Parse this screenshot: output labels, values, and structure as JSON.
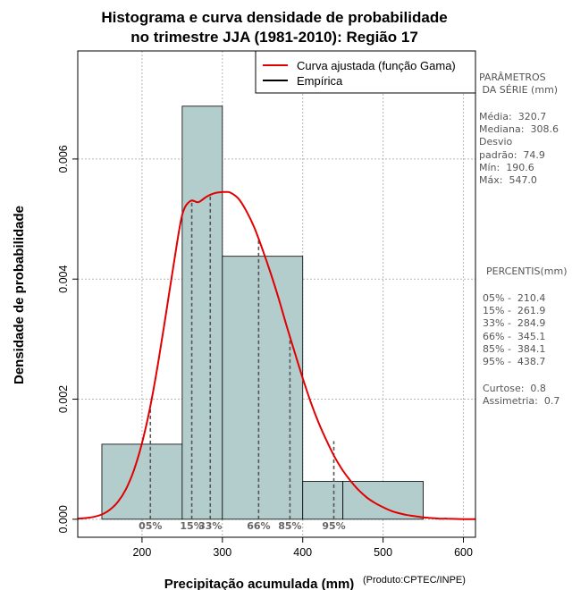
{
  "colors": {
    "bar_fill": "#b3cccc",
    "curve": "#e00000",
    "grid": "#b5b5b5",
    "text_side": "#555555"
  },
  "chart_data": {
    "type": "bar",
    "title_lines": [
      "Histograma e curva densidade de probabilidade",
      "no trimestre JJA (1981-2010): Região 17"
    ],
    "xlabel": "Precipitação acumulada (mm)",
    "ylabel": "Densidade de probabilidade",
    "credit": "(Produto:CPTEC/INPE)",
    "xlim": [
      120,
      615
    ],
    "ylim": [
      -0.0003,
      0.0078
    ],
    "x_ticks": [
      200,
      300,
      400,
      500,
      600
    ],
    "y_ticks": [
      0.0,
      0.002,
      0.004,
      0.006
    ],
    "y_tick_labels": [
      "0.000",
      "0.002",
      "0.004",
      "0.006"
    ],
    "histogram": {
      "bins": [
        {
          "x0": 150,
          "x1": 250,
          "density": 0.00125
        },
        {
          "x0": 250,
          "x1": 300,
          "density": 0.00688
        },
        {
          "x0": 300,
          "x1": 400,
          "density": 0.00438
        },
        {
          "x0": 400,
          "x1": 450,
          "density": 0.00063
        },
        {
          "x0": 450,
          "x1": 550,
          "density": 0.00063
        }
      ]
    },
    "gamma_curve": {
      "name": "Curva ajustada (função Gama)",
      "x": [
        120,
        130,
        140,
        150,
        160,
        170,
        180,
        190,
        200,
        210,
        220,
        230,
        240,
        250,
        260,
        270,
        280,
        290,
        300,
        305,
        310,
        320,
        330,
        340,
        350,
        360,
        370,
        380,
        390,
        400,
        410,
        420,
        430,
        440,
        450,
        460,
        470,
        480,
        490,
        500,
        510,
        520,
        530,
        540,
        550,
        560,
        570,
        580,
        590,
        600,
        615
      ],
      "y": [
        1e-05,
        2e-05,
        4e-05,
        8e-05,
        0.00016,
        0.00029,
        0.0005,
        0.00082,
        0.00127,
        0.00186,
        0.0026,
        0.00344,
        0.0043,
        0.00507,
        0.0053,
        0.00528,
        0.00537,
        0.00543,
        0.00545,
        0.00545,
        0.00544,
        0.00534,
        0.00513,
        0.00485,
        0.00449,
        0.0041,
        0.00368,
        0.00322,
        0.00278,
        0.00235,
        0.00195,
        0.0016,
        0.0013,
        0.00103,
        0.00081,
        0.00063,
        0.00048,
        0.00036,
        0.00027,
        0.0002,
        0.00014,
        0.0001,
        7e-05,
        5e-05,
        3e-05,
        2e-05,
        1e-05,
        1e-05,
        5e-06,
        3e-06,
        1e-06
      ]
    },
    "percentile_lines": [
      {
        "label": "05%",
        "x": 210.4,
        "y": 0.00186
      },
      {
        "label": "15%",
        "x": 261.9,
        "y": 0.00529
      },
      {
        "label": "33%",
        "x": 284.9,
        "y": 0.00538
      },
      {
        "label": "66%",
        "x": 345.1,
        "y": 0.00466
      },
      {
        "label": "85%",
        "x": 384.1,
        "y": 0.00305
      },
      {
        "label": "95%",
        "x": 438.7,
        "y": 0.0013
      }
    ],
    "legend": {
      "position": "top-right",
      "entries": [
        {
          "label": "Curva ajustada (função Gama)",
          "color": "#e00000"
        },
        {
          "label": "Empírica",
          "color": "#000000"
        }
      ]
    },
    "grid": true
  },
  "sidebar": {
    "params_title": "PARÂMETROS\n DA SÉRIE (mm)",
    "params_body": "Média:  320.7\nMediana:  308.6\nDesvio\npadrão:  74.9\nMín:  190.6\nMáx:  547.0",
    "percentis_title": "PERCENTIS(mm)",
    "percentis_body": "05% -  210.4\n15% -  261.9\n33% -  284.9\n66% -  345.1\n85% -  384.1\n95% -  438.7",
    "stats_body": "Curtose:  0.8\nAssimetria:  0.7"
  }
}
